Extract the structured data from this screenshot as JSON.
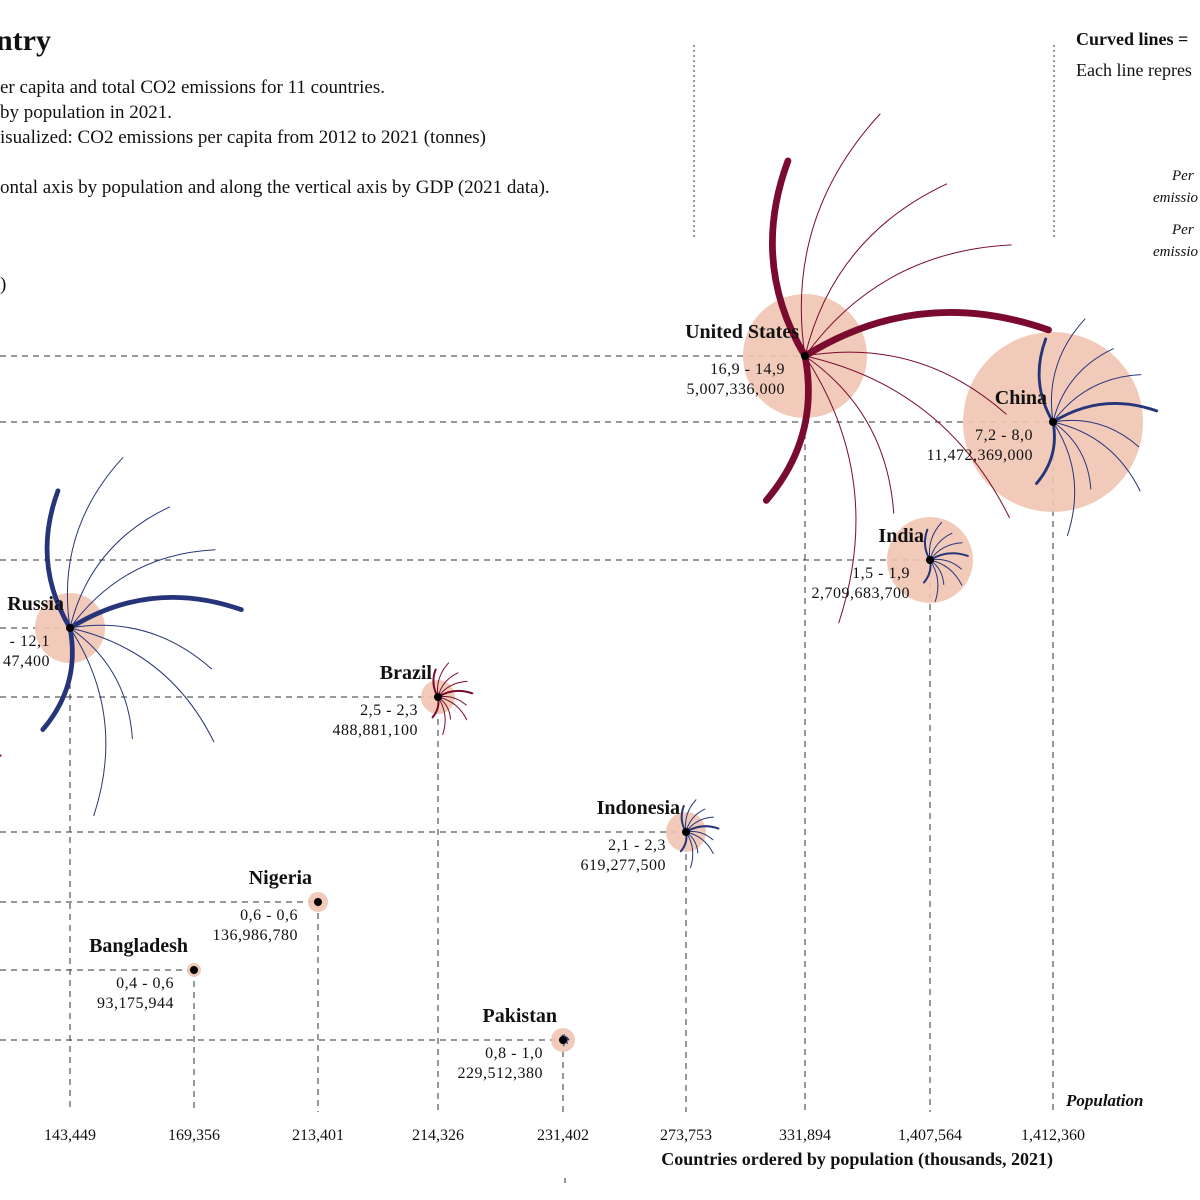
{
  "header": {
    "title": "ntry",
    "lines": [
      "er capita and total CO2 emissions for 11 countries.",
      " by population in 2021.",
      "isualized: CO2 emissions per capita from 2012 to 2021 (tonnes)",
      "ontal axis by population and along the vertical axis by GDP (2021 data).",
      ")"
    ]
  },
  "legend": {
    "heading": "Curved lines =",
    "subheading": "Each line repres",
    "item1": [
      "Per",
      "emissio"
    ],
    "item2": [
      "Per",
      "emissio"
    ]
  },
  "colors": {
    "decrease": "#7a0a2e",
    "increase": "#26357a",
    "circle": "#f0c4b2"
  },
  "chart_data": {
    "type": "scatter",
    "xlabel": "Countries ordered by population (thousands, 2021)",
    "x_axis_name": "Population",
    "x_ticks": [
      "143,449",
      "169,356",
      "213,401",
      "214,326",
      "231,402",
      "273,753",
      "331,894",
      "1,407,564",
      "1,412,360"
    ],
    "countries": [
      {
        "name": "Russia",
        "co2_range": "- 12,1",
        "total": "47,400",
        "trend": "increase"
      },
      {
        "name": "Bangladesh",
        "co2_range": "0,4 - 0,6",
        "total": "93,175,944",
        "trend": "increase"
      },
      {
        "name": "Nigeria",
        "co2_range": "0,6 - 0,6",
        "total": "136,986,780",
        "trend": "decrease"
      },
      {
        "name": "Brazil",
        "co2_range": "2,5 - 2,3",
        "total": "488,881,100",
        "trend": "decrease"
      },
      {
        "name": "Pakistan",
        "co2_range": "0,8 - 1,0",
        "total": "229,512,380",
        "trend": "increase"
      },
      {
        "name": "Indonesia",
        "co2_range": "2,1 - 2,3",
        "total": "619,277,500",
        "trend": "increase"
      },
      {
        "name": "United States",
        "co2_range": "16,9 - 14,9",
        "total": "5,007,336,000",
        "trend": "decrease"
      },
      {
        "name": "India",
        "co2_range": "1,5 - 1,9",
        "total": "2,709,683,700",
        "trend": "increase"
      },
      {
        "name": "China",
        "co2_range": "7,2 - 8,0",
        "total": "11,472,369,000",
        "trend": "increase"
      }
    ]
  }
}
